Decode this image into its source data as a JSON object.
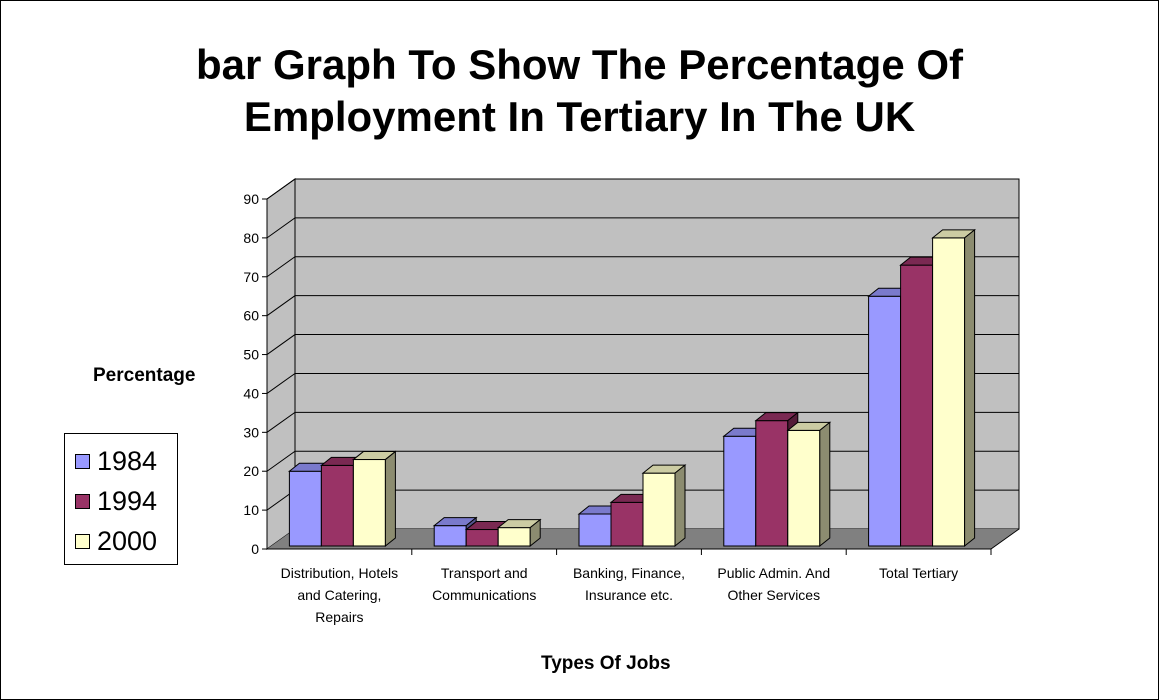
{
  "chart_data": {
    "type": "bar",
    "title": "bar Graph To Show The Percentage Of\nEmployment In Tertiary In The UK",
    "xlabel": "Types Of Jobs",
    "ylabel": "Percentage",
    "ylim": [
      0,
      90
    ],
    "yticks": [
      0,
      10,
      20,
      30,
      40,
      50,
      60,
      70,
      80,
      90
    ],
    "grid": true,
    "legend_position": "left",
    "categories": [
      [
        "Distribution, Hotels",
        "and Catering,",
        "Repairs"
      ],
      [
        "Transport and",
        "Communications"
      ],
      [
        "Banking, Finance,",
        "Insurance etc."
      ],
      [
        "Public Admin. And",
        "Other Services"
      ],
      [
        "Total Tertiary"
      ]
    ],
    "series": [
      {
        "name": "1984",
        "color": "#9999ff",
        "values": [
          20,
          6,
          9,
          29,
          65
        ]
      },
      {
        "name": "1994",
        "color": "#993366",
        "values": [
          21.5,
          5,
          12,
          33,
          73
        ]
      },
      {
        "name": "2000",
        "color": "#ffffcc",
        "values": [
          23,
          5.5,
          19.5,
          30.5,
          80
        ]
      }
    ],
    "colors": {
      "wall": "#c0c0c0",
      "floor": "#808080"
    }
  }
}
